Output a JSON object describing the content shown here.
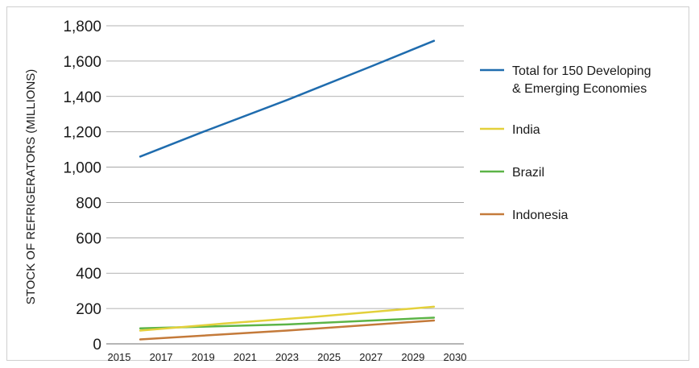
{
  "chart_data": {
    "type": "line",
    "title": "",
    "xlabel": "",
    "ylabel": "STOCK OF REFRIGERATORS (MILLIONS)",
    "x_ticks": [
      "2015",
      "2017",
      "2019",
      "2021",
      "2023",
      "2025",
      "2027",
      "2029",
      "2030"
    ],
    "y_ticks": [
      "0",
      "200",
      "400",
      "600",
      "800",
      "1,000",
      "1,200",
      "1,400",
      "1,600",
      "1,800"
    ],
    "ylim": [
      0,
      1800
    ],
    "xlim": [
      2015,
      2031
    ],
    "grid": "horizontal",
    "legend_position": "right",
    "series": [
      {
        "name": "Total for 150 Developing & Emerging Economies",
        "name_lines": [
          "Total for 150 Developing",
          "& Emerging Economies"
        ],
        "color": "#1f6cae",
        "x": [
          2016,
          2019,
          2023,
          2027,
          2030
        ],
        "values": [
          1060,
          1200,
          1380,
          1570,
          1715
        ]
      },
      {
        "name": "India",
        "name_lines": [
          "India"
        ],
        "color": "#e3d03b",
        "x": [
          2016,
          2020,
          2024,
          2030
        ],
        "values": [
          75,
          115,
          150,
          210
        ]
      },
      {
        "name": "Brazil",
        "name_lines": [
          "Brazil"
        ],
        "color": "#5cb447",
        "x": [
          2016,
          2023,
          2030
        ],
        "values": [
          88,
          110,
          148
        ]
      },
      {
        "name": "Indonesia",
        "name_lines": [
          "Indonesia"
        ],
        "color": "#c47a3a",
        "x": [
          2016,
          2023,
          2030
        ],
        "values": [
          25,
          75,
          132
        ]
      }
    ]
  }
}
